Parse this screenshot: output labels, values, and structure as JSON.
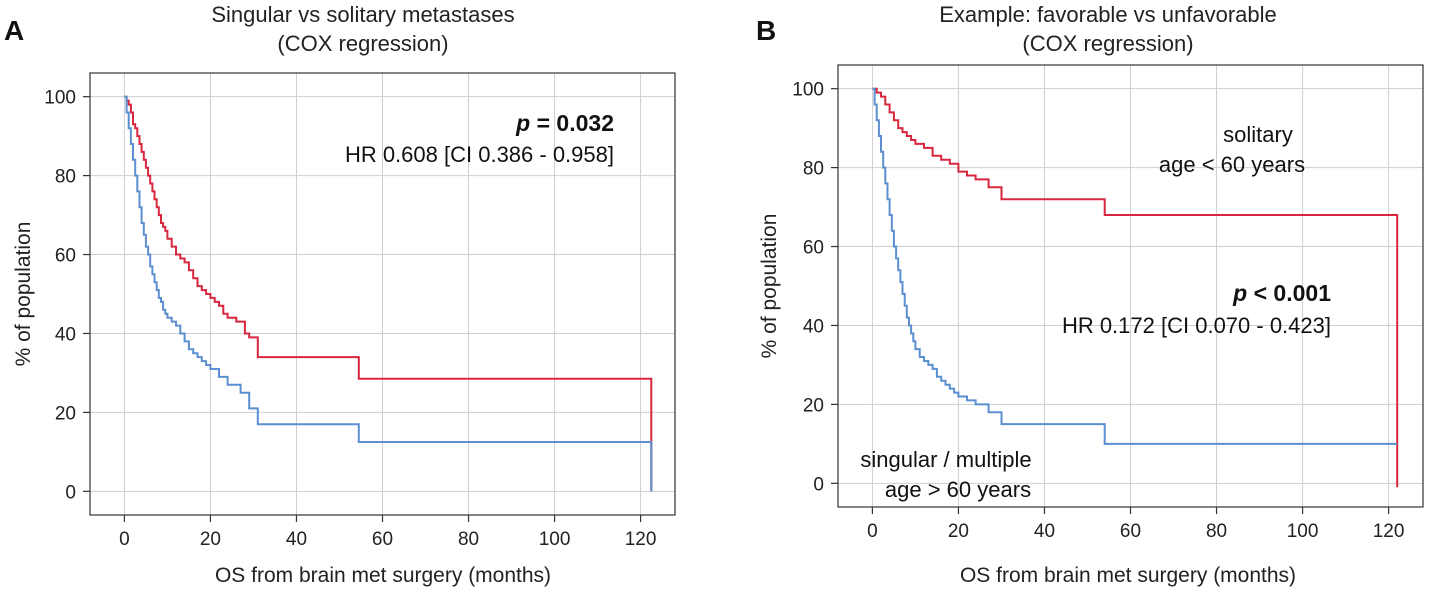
{
  "colors": {
    "red": "#d7263d",
    "blue": "#5b8fd0"
  },
  "chart_data": [
    {
      "type": "line",
      "panel_label": "A",
      "title": "Singular vs solitary metastases",
      "subtitle": "(COX regression)",
      "xlabel": "OS from brain met surgery (months)",
      "ylabel": "% of population",
      "xlim": [
        -8,
        128
      ],
      "ylim": [
        -6,
        106
      ],
      "xticks": [
        0,
        20,
        40,
        60,
        80,
        100,
        120
      ],
      "yticks": [
        0,
        20,
        40,
        60,
        80,
        100
      ],
      "grid": true,
      "annotations": {
        "p_label": "p",
        "p_rest": " = 0.032",
        "hr": "HR 0.608 [CI 0.386 - 0.958]"
      },
      "series": [
        {
          "name": "solitary",
          "color": "#d7263d",
          "x": [
            0,
            0.5,
            1,
            1.5,
            2,
            2.5,
            3,
            3.5,
            4,
            4.5,
            5,
            5.5,
            6,
            6.5,
            7,
            7.5,
            8,
            8.5,
            9,
            9.5,
            10,
            11,
            12,
            13,
            14,
            15,
            16,
            17,
            18,
            19,
            20,
            21,
            22,
            23,
            24,
            26,
            28,
            29,
            31,
            54.5,
            122.5
          ],
          "y": [
            100,
            99,
            98,
            96,
            93,
            92,
            90,
            88,
            86,
            84,
            82,
            80,
            78,
            76,
            74,
            72,
            70,
            68,
            67,
            66,
            64,
            62,
            60,
            59,
            58,
            56,
            54,
            52,
            51,
            50,
            49,
            48,
            47,
            45,
            44,
            43,
            40,
            39,
            34,
            28.5,
            0
          ]
        },
        {
          "name": "singular",
          "color": "#5b8fd0",
          "x": [
            0,
            0.5,
            1,
            1.5,
            2,
            2.5,
            3,
            3.5,
            4,
            4.5,
            5,
            5.5,
            6,
            6.5,
            7,
            7.5,
            8,
            8.5,
            9,
            9.5,
            10,
            11,
            12,
            13,
            14,
            15,
            16,
            17,
            18,
            19,
            20,
            22,
            24,
            27,
            29,
            31,
            54.5,
            122.5
          ],
          "y": [
            100,
            96,
            92,
            88,
            84,
            80,
            76,
            72,
            68,
            65,
            62,
            60,
            57,
            55,
            53,
            51,
            49,
            48,
            46,
            45,
            44,
            43,
            42,
            40,
            38,
            36,
            35,
            34,
            33,
            32,
            31,
            29,
            27,
            25,
            21,
            17,
            12.5,
            0
          ]
        }
      ]
    },
    {
      "type": "line",
      "panel_label": "B",
      "title": "Example: favorable vs unfavorable",
      "subtitle": "(COX regression)",
      "xlabel": "OS from brain met surgery (months)",
      "ylabel": "% of population",
      "xlim": [
        -8,
        128
      ],
      "ylim": [
        -6,
        106
      ],
      "xticks": [
        0,
        20,
        40,
        60,
        80,
        100,
        120
      ],
      "yticks": [
        0,
        20,
        40,
        60,
        80,
        100
      ],
      "grid": true,
      "annotations": {
        "solitary_line1": "solitary",
        "solitary_line2": "age < 60 years",
        "singular_line1": "singular / multiple",
        "singular_line2": "age > 60 years",
        "p_label": "p",
        "p_rest": " < 0.001",
        "hr": "HR 0.172 [CI 0.070 - 0.423]"
      },
      "series": [
        {
          "name": "solitary, age < 60 years",
          "color": "#d7263d",
          "x": [
            0,
            1,
            2,
            3,
            4,
            5,
            6,
            7,
            8,
            9,
            10,
            12,
            14,
            16,
            18,
            20,
            22,
            24,
            27,
            30,
            54,
            122
          ],
          "y": [
            100,
            99,
            98,
            96,
            94,
            92,
            90,
            89,
            88,
            87,
            86,
            85,
            83,
            82,
            81,
            79,
            78,
            77,
            75,
            72,
            68,
            -1
          ]
        },
        {
          "name": "singular / multiple, age > 60 years",
          "color": "#5b8fd0",
          "x": [
            0,
            0.5,
            1,
            1.5,
            2,
            2.5,
            3,
            3.5,
            4,
            4.5,
            5,
            5.5,
            6,
            6.5,
            7,
            7.5,
            8,
            8.5,
            9,
            9.5,
            10,
            11,
            12,
            13,
            14,
            15,
            16,
            17,
            18,
            19,
            20,
            22,
            24,
            27,
            30,
            54,
            122
          ],
          "y": [
            100,
            96,
            92,
            88,
            84,
            80,
            76,
            72,
            68,
            64,
            60,
            57,
            54,
            51,
            48,
            45,
            42,
            40,
            38,
            36,
            34,
            32,
            31,
            30,
            29,
            27,
            26,
            25,
            24,
            23,
            22,
            21,
            20,
            18,
            15,
            10,
            10
          ]
        }
      ]
    }
  ]
}
